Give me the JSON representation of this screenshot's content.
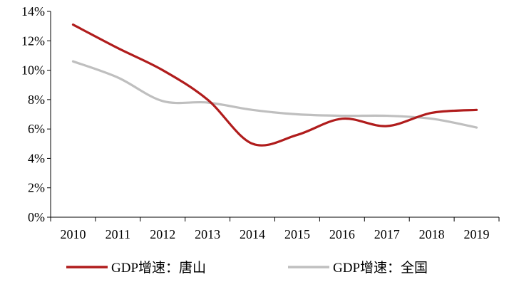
{
  "chart_data": {
    "type": "line",
    "title": "",
    "xlabel": "",
    "ylabel": "",
    "categories": [
      "2010",
      "2011",
      "2012",
      "2013",
      "2014",
      "2015",
      "2016",
      "2017",
      "2018",
      "2019"
    ],
    "yticks": [
      "0%",
      "2%",
      "4%",
      "6%",
      "8%",
      "10%",
      "12%",
      "14%"
    ],
    "ylim": [
      0,
      14
    ],
    "grid": false,
    "legend_position": "bottom",
    "series": [
      {
        "name": "GDP增速：唐山",
        "color": "#b01c1c",
        "values": [
          13.1,
          11.5,
          10.0,
          8.0,
          5.0,
          5.6,
          6.7,
          6.2,
          7.1,
          7.3
        ]
      },
      {
        "name": "GDP增速：全国",
        "color": "#bfbfbf",
        "values": [
          10.6,
          9.5,
          7.9,
          7.8,
          7.3,
          7.0,
          6.9,
          6.9,
          6.7,
          6.1
        ]
      }
    ]
  }
}
